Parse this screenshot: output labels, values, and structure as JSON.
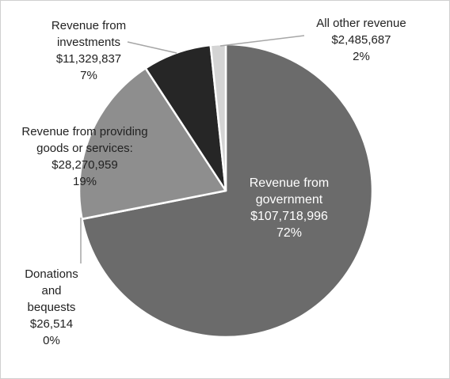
{
  "chart_data": {
    "type": "pie",
    "title": "",
    "slices": [
      {
        "name": "Revenue from government",
        "value": 107718996,
        "value_label": "$107,718,996",
        "percent_label": "72%",
        "color": "#6b6b6b",
        "label_lines": [
          "Revenue from",
          "government",
          "$107,718,996",
          "72%"
        ]
      },
      {
        "name": "Donations and bequests",
        "value": 26514,
        "value_label": "$26,514",
        "percent_label": "0%",
        "color": "#6b6b6b",
        "label_lines": [
          "Donations",
          "and",
          "bequests",
          "$26,514",
          "0%"
        ]
      },
      {
        "name": "Revenue from providing goods or services:",
        "value": 28270959,
        "value_label": "$28,270,959",
        "percent_label": "19%",
        "color": "#8e8e8e",
        "label_lines": [
          "Revenue from providing",
          "goods or services:",
          "$28,270,959",
          "19%"
        ]
      },
      {
        "name": "Revenue from investments",
        "value": 11329837,
        "value_label": "$11,329,837",
        "percent_label": "7%",
        "color": "#262626",
        "label_lines": [
          "Revenue from",
          "investments",
          "$11,329,837",
          "7%"
        ]
      },
      {
        "name": "All other revenue",
        "value": 2485687,
        "value_label": "$2,485,687",
        "percent_label": "2%",
        "color": "#d4d4d4",
        "label_lines": [
          "All other revenue",
          "$2,485,687",
          "2%"
        ]
      }
    ],
    "start_angle_deg": 0,
    "direction": "clockwise",
    "legend": "none"
  }
}
